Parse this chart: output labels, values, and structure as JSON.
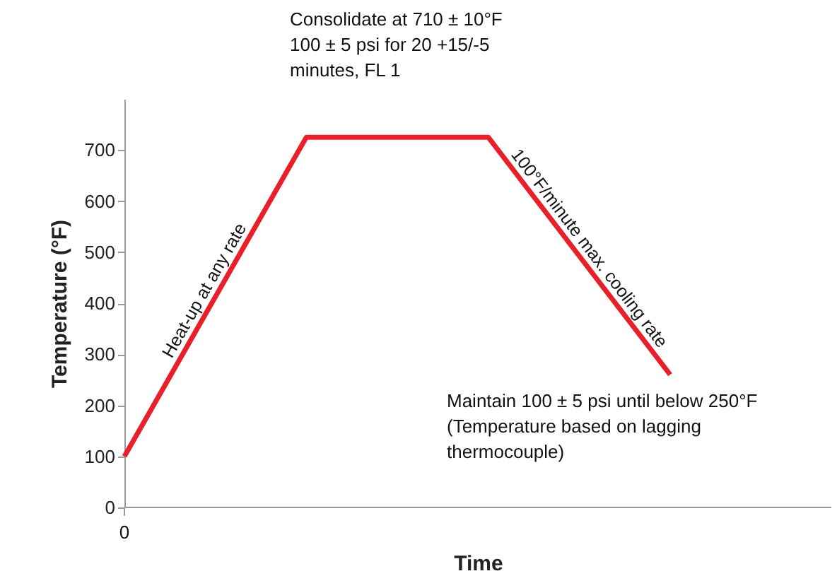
{
  "chart_data": {
    "type": "line",
    "xlabel": "Time",
    "ylabel": "Temperature (°F)",
    "categories": [
      null,
      null,
      null,
      null
    ],
    "series": [
      {
        "color": "#e8202a",
        "values": [
          100,
          725,
          725,
          260
        ]
      }
    ],
    "ylim": [
      0,
      800
    ],
    "yticks": [
      0,
      100,
      200,
      300,
      400,
      500,
      600,
      700
    ],
    "grid": false,
    "marker": "none",
    "line_style": "solid",
    "annotations": [
      "Consolidate at 710 ± 10°F\n100 ± 5 psi for 20 +15/-5\nminutes, FL 1",
      "Heat-up at any rate",
      "100°F/minute max. cooling rate",
      "Maintain 100 ± 5 psi until below 250°F\n(Temperature based on lagging\nthermocouple)",
      "0"
    ]
  }
}
